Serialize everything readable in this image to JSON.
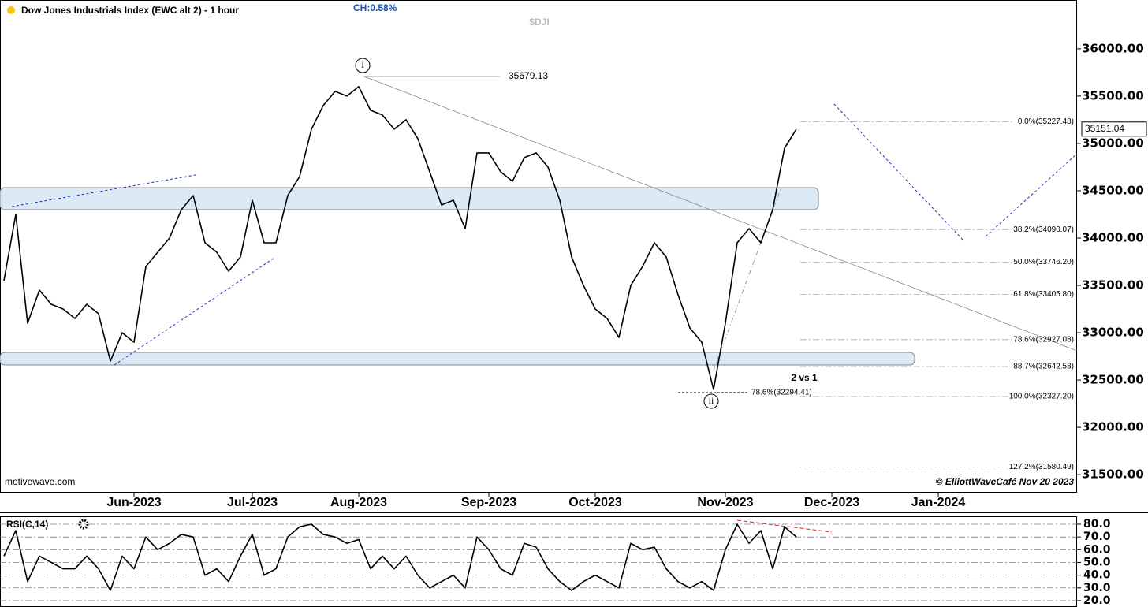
{
  "chart_data": [
    {
      "type": "line",
      "title": "Dow Jones Industrials Index (EWC alt 2) - 1 hour",
      "change": "CH:0.58%",
      "symbol": "$DJI",
      "source": "motivewave.com",
      "credit": "© ElliottWaveCafé Nov 20 2023",
      "peak_label": "35679.13",
      "wave_1": "i",
      "wave_2": "ii",
      "note": "2 vs 1",
      "retrace_label": "78.6%(32294.41)",
      "color": "#000000",
      "last_price": 35151.04,
      "categories": [
        null,
        null,
        null,
        null,
        null,
        null,
        null,
        null,
        null,
        null,
        null,
        "Jun-2023",
        null,
        null,
        null,
        null,
        null,
        null,
        null,
        null,
        null,
        "Jul-2023",
        null,
        null,
        null,
        null,
        null,
        null,
        null,
        null,
        "Aug-2023",
        null,
        null,
        null,
        null,
        null,
        null,
        null,
        null,
        null,
        null,
        "Sep-2023",
        null,
        null,
        null,
        null,
        null,
        null,
        null,
        null,
        "Oct-2023",
        null,
        null,
        null,
        null,
        null,
        null,
        null,
        null,
        null,
        null,
        "Nov-2023",
        null,
        null,
        null,
        null,
        null,
        null,
        null,
        null,
        "Dec-2023",
        null,
        null,
        null,
        null,
        null,
        null,
        null,
        null,
        "Jan-2024",
        null,
        null,
        null,
        null,
        null,
        null,
        null,
        null,
        null,
        null,
        null,
        null
      ],
      "values": [
        33550,
        34250,
        33100,
        33450,
        33300,
        33250,
        33150,
        33300,
        33200,
        32700,
        33000,
        32900,
        33700,
        33850,
        34000,
        34300,
        34450,
        33950,
        33850,
        33650,
        33800,
        34400,
        33950,
        33950,
        34450,
        34650,
        35150,
        35400,
        35550,
        35500,
        35600,
        35350,
        35300,
        35150,
        35250,
        35050,
        34700,
        34350,
        34400,
        34100,
        34900,
        34900,
        34700,
        34600,
        34850,
        34900,
        34750,
        34400,
        33800,
        33500,
        33250,
        33150,
        32950,
        33500,
        33700,
        33950,
        33800,
        33400,
        33050,
        32900,
        32400,
        33100,
        33950,
        34100,
        33950,
        34300,
        34950,
        35150,
        null,
        null,
        null,
        null,
        null,
        null,
        null,
        null,
        null,
        null,
        null,
        null,
        null,
        null,
        null,
        null,
        null,
        null,
        null,
        null,
        null,
        null,
        null,
        null
      ],
      "ylim": [
        31310,
        36515
      ],
      "yticks": [
        {
          "value": 31500,
          "label": "31500.00"
        },
        {
          "value": 32000,
          "label": "32000.00"
        },
        {
          "value": 32500,
          "label": "32500.00"
        },
        {
          "value": 33000,
          "label": "33000.00"
        },
        {
          "value": 33500,
          "label": "33500.00"
        },
        {
          "value": 34000,
          "label": "34000.00"
        },
        {
          "value": 34500,
          "label": "34500.00"
        },
        {
          "value": 35000,
          "label": "35000.00"
        },
        {
          "value": 35500,
          "label": "35500.00"
        },
        {
          "value": 36000,
          "label": "36000.00"
        }
      ],
      "fib_levels": [
        {
          "value": 35227.48,
          "label": "0.0%(35227.48)"
        },
        {
          "value": 34090.07,
          "label": "38.2%(34090.07)"
        },
        {
          "value": 33746.2,
          "label": "50.0%(33746.20)"
        },
        {
          "value": 33405.8,
          "label": "61.8%(33405.80)"
        },
        {
          "value": 32927.08,
          "label": "78.6%(32927.08)"
        },
        {
          "value": 32642.58,
          "label": "88.7%(32642.58)"
        },
        {
          "value": 32327.2,
          "label": "100.0%(32327.20)"
        },
        {
          "value": 31580.49,
          "label": "127.2%(31580.49)"
        }
      ]
    },
    {
      "type": "line",
      "title": "RSI(C,14)",
      "color": "#000000",
      "values": [
        55,
        75,
        35,
        55,
        50,
        45,
        45,
        55,
        45,
        28,
        55,
        45,
        70,
        60,
        65,
        72,
        70,
        40,
        45,
        35,
        55,
        72,
        40,
        45,
        70,
        78,
        80,
        72,
        70,
        65,
        68,
        45,
        55,
        45,
        55,
        40,
        30,
        35,
        40,
        30,
        70,
        60,
        45,
        40,
        65,
        62,
        45,
        35,
        28,
        35,
        40,
        35,
        30,
        65,
        60,
        62,
        45,
        35,
        30,
        35,
        28,
        60,
        80,
        65,
        75,
        45,
        78,
        70
      ],
      "ylim": [
        15,
        86.2
      ],
      "yticks": [
        {
          "value": 20,
          "label": "20.0"
        },
        {
          "value": 30,
          "label": "30.0"
        },
        {
          "value": 40,
          "label": "40.0"
        },
        {
          "value": 50,
          "label": "50.0"
        },
        {
          "value": 60,
          "label": "60.0"
        },
        {
          "value": 70,
          "label": "70.0"
        },
        {
          "value": 80,
          "label": "80.0"
        }
      ]
    }
  ]
}
